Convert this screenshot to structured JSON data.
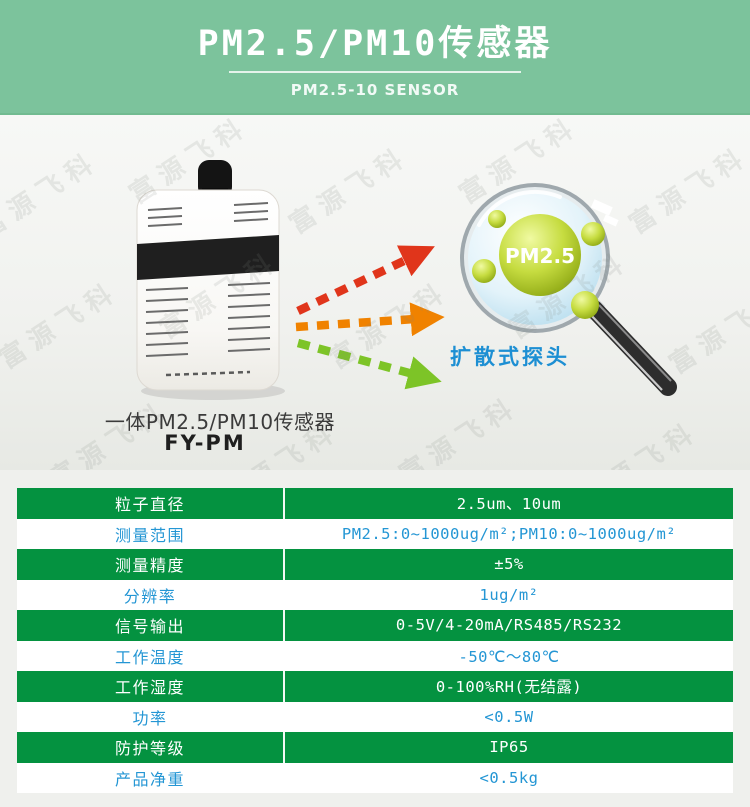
{
  "header": {
    "title": "PM2.5/PM10传感器",
    "subtitle": "PM2.5-10 SENSOR"
  },
  "hero": {
    "watermark": "富源飞科",
    "magnifier_label": "PM2.5",
    "probe_label": "扩散式探头",
    "caption": "一体PM2.5/PM10传感器",
    "model": "FY-PM"
  },
  "colors": {
    "header_green": "#7cc39c",
    "table_green": "#049240",
    "row_text_blue": "#2496d4",
    "probe_label_blue": "#1d8fd3",
    "arrow_red": "#e0351b",
    "arrow_orange": "#f08200",
    "arrow_green": "#7dc427"
  },
  "spec_table": {
    "rows": [
      {
        "label": "粒子直径",
        "value": "2.5um、10um"
      },
      {
        "label": "测量范围",
        "value": "PM2.5:0~1000ug/m²;PM10:0~1000ug/m²"
      },
      {
        "label": "测量精度",
        "value": "±5%"
      },
      {
        "label": "分辨率",
        "value": "1ug/m²"
      },
      {
        "label": "信号输出",
        "value": "0-5V/4-20mA/RS485/RS232"
      },
      {
        "label": "工作温度",
        "value": "-50℃～80℃"
      },
      {
        "label": "工作湿度",
        "value": "0-100%RH(无结露)"
      },
      {
        "label": "功率",
        "value": "<0.5W"
      },
      {
        "label": "防护等级",
        "value": "IP65"
      },
      {
        "label": "产品净重",
        "value": "<0.5kg"
      }
    ]
  }
}
